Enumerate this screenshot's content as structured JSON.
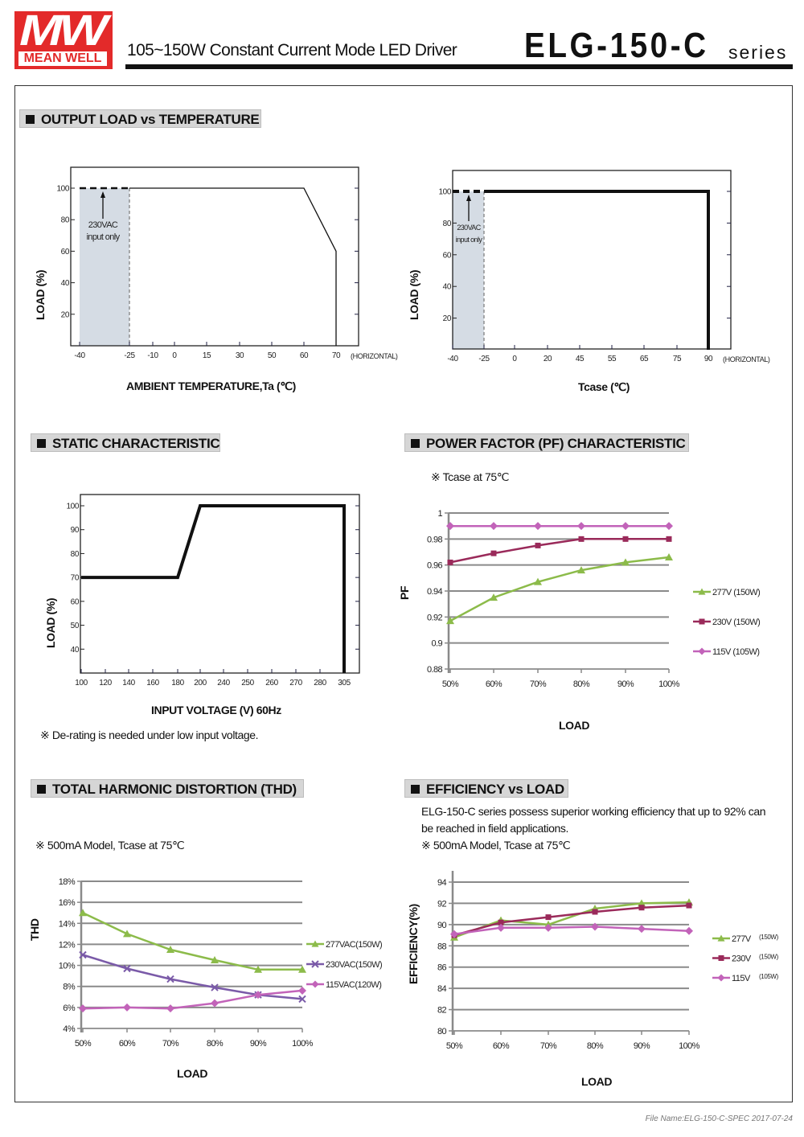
{
  "header": {
    "logo_text": "MW",
    "logo_brand": "MEAN WELL",
    "subtitle": "105~150W Constant Current Mode LED Driver",
    "model": "ELG-150-C",
    "series": "series"
  },
  "sections": {
    "derating": "OUTPUT LOAD vs TEMPERATURE",
    "static": "STATIC CHARACTERISTIC",
    "pf": "POWER FACTOR (PF) CHARACTERISTIC",
    "thd": "TOTAL HARMONIC DISTORTION (THD)",
    "efficiency": "EFFICIENCY vs LOAD"
  },
  "notes": {
    "static_note": "※ De-rating is needed under low input voltage.",
    "pf_note": "※ Tcase at 75℃",
    "thd_note": "※ 500mA Model, Tcase at 75℃",
    "eff_desc_1": "ELG-150-C series possess superior working efficiency that up to 92% can",
    "eff_desc_2": "be reached in field applications.",
    "eff_note": "※ 500mA Model, Tcase at 75℃"
  },
  "footer": "File Name:ELG-150-C-SPEC   2017-07-24",
  "colors": {
    "green": "#8cbb4a",
    "maroon": "#9a2a5a",
    "pink": "#c263b9",
    "purple": "#7a5aa8",
    "shade": "#d5dce4"
  },
  "chart_data": [
    {
      "type": "line",
      "xlabel": "AMBIENT TEMPERATURE,Ta (℃)",
      "x_note": "(HORIZONTAL)",
      "ylabel": "LOAD (%)",
      "x_ticks": [
        "-40",
        "-25",
        "-10",
        "0",
        "15",
        "30",
        "50",
        "60",
        "70"
      ],
      "x_tick_values": [
        -40,
        -25,
        -10,
        0,
        15,
        30,
        50,
        60,
        70
      ],
      "y_ticks": [
        20,
        40,
        60,
        80,
        100
      ],
      "ylim": [
        0,
        110
      ],
      "shaded_region": [
        -40,
        -25
      ],
      "annotation": [
        "230VAC",
        "input only"
      ],
      "series": [
        {
          "style": "dashed",
          "points": [
            [
              -40,
              100
            ],
            [
              -25,
              100
            ]
          ]
        },
        {
          "style": "solid",
          "points": [
            [
              -25,
              100
            ],
            [
              60,
              100
            ],
            [
              70,
              60
            ],
            [
              70,
              0
            ]
          ]
        }
      ]
    },
    {
      "type": "line",
      "xlabel": "Tcase (℃)",
      "x_note": "(HORIZONTAL)",
      "ylabel": "LOAD (%)",
      "x_ticks": [
        "-40",
        "-25",
        "0",
        "20",
        "45",
        "55",
        "65",
        "75",
        "90"
      ],
      "x_tick_values": [
        -40,
        -25,
        0,
        20,
        45,
        55,
        65,
        75,
        90
      ],
      "y_ticks": [
        20,
        40,
        60,
        80,
        100
      ],
      "ylim": [
        0,
        110
      ],
      "shaded_region": [
        -40,
        -25
      ],
      "annotation": [
        "230VAC",
        "input only"
      ],
      "series": [
        {
          "style": "dashed",
          "points": [
            [
              -40,
              100
            ],
            [
              -25,
              100
            ]
          ]
        },
        {
          "style": "solid",
          "points": [
            [
              -25,
              100
            ],
            [
              90,
              100
            ],
            [
              90,
              0
            ]
          ]
        }
      ]
    },
    {
      "type": "line",
      "xlabel": "INPUT VOLTAGE (V) 60Hz",
      "ylabel": "LOAD (%)",
      "x_ticks": [
        "100",
        "120",
        "140",
        "160",
        "180",
        "200",
        "240",
        "250",
        "260",
        "270",
        "280",
        "305"
      ],
      "x_tick_values": [
        100,
        120,
        140,
        160,
        180,
        200,
        240,
        250,
        260,
        270,
        280,
        305
      ],
      "y_ticks": [
        40,
        50,
        60,
        70,
        80,
        90,
        100
      ],
      "ylim": [
        30,
        105
      ],
      "series": [
        {
          "style": "solid",
          "points": [
            [
              100,
              70
            ],
            [
              180,
              70
            ],
            [
              200,
              100
            ],
            [
              305,
              100
            ],
            [
              305,
              30
            ]
          ]
        }
      ]
    },
    {
      "type": "line",
      "xlabel": "LOAD",
      "ylabel": "PF",
      "categories": [
        "50%",
        "60%",
        "70%",
        "80%",
        "90%",
        "100%"
      ],
      "y_ticks": [
        "0.88",
        "0.9",
        "0.92",
        "0.94",
        "0.96",
        "0.98",
        "1"
      ],
      "ylim": [
        0.88,
        1
      ],
      "grid": true,
      "legend": "right",
      "series": [
        {
          "name": "277V (150W)",
          "color": "#8cbb4a",
          "marker": "triangle",
          "values": [
            0.917,
            0.935,
            0.947,
            0.956,
            0.962,
            0.966
          ]
        },
        {
          "name": "230V (150W)",
          "color": "#9a2a5a",
          "marker": "square",
          "values": [
            0.962,
            0.969,
            0.975,
            0.98,
            0.98,
            0.98
          ]
        },
        {
          "name": "115V (105W)",
          "color": "#c263b9",
          "marker": "diamond",
          "values": [
            0.99,
            0.99,
            0.99,
            0.99,
            0.99,
            0.99
          ]
        }
      ]
    },
    {
      "type": "line",
      "xlabel": "LOAD",
      "ylabel": "THD",
      "categories": [
        "50%",
        "60%",
        "70%",
        "80%",
        "90%",
        "100%"
      ],
      "y_ticks": [
        "4%",
        "6%",
        "8%",
        "10%",
        "12%",
        "14%",
        "16%",
        "18%"
      ],
      "ylim": [
        4,
        18
      ],
      "grid": true,
      "legend": "right",
      "series": [
        {
          "name": "277VAC(150W)",
          "color": "#8cbb4a",
          "marker": "triangle",
          "values": [
            15,
            13,
            11.5,
            10.5,
            9.6,
            9.6
          ]
        },
        {
          "name": "230VAC(150W)",
          "color": "#7a5aa8",
          "marker": "x",
          "values": [
            11,
            9.7,
            8.7,
            7.9,
            7.2,
            6.8
          ]
        },
        {
          "name": "115VAC(120W)",
          "color": "#c263b9",
          "marker": "diamond",
          "values": [
            5.9,
            6,
            5.9,
            6.4,
            7.2,
            7.6
          ]
        }
      ]
    },
    {
      "type": "line",
      "xlabel": "LOAD",
      "ylabel": "EFFICIENCY(%)",
      "categories": [
        "50%",
        "60%",
        "70%",
        "80%",
        "90%",
        "100%"
      ],
      "y_ticks": [
        "80",
        "82",
        "84",
        "86",
        "88",
        "90",
        "92",
        "94"
      ],
      "ylim": [
        80,
        94
      ],
      "grid": true,
      "legend": "right",
      "series": [
        {
          "name": "277V",
          "name_sub": "(150W)",
          "color": "#8cbb4a",
          "marker": "triangle",
          "values": [
            88.8,
            90.4,
            90,
            91.5,
            92,
            92.1
          ]
        },
        {
          "name": "230V",
          "name_sub": "(150W)",
          "color": "#9a2a5a",
          "marker": "square",
          "values": [
            89,
            90.2,
            90.7,
            91.2,
            91.6,
            91.8
          ]
        },
        {
          "name": "115V",
          "name_sub": "(105W)",
          "color": "#c263b9",
          "marker": "diamond",
          "values": [
            89.1,
            89.7,
            89.7,
            89.8,
            89.6,
            89.4
          ]
        }
      ]
    }
  ]
}
